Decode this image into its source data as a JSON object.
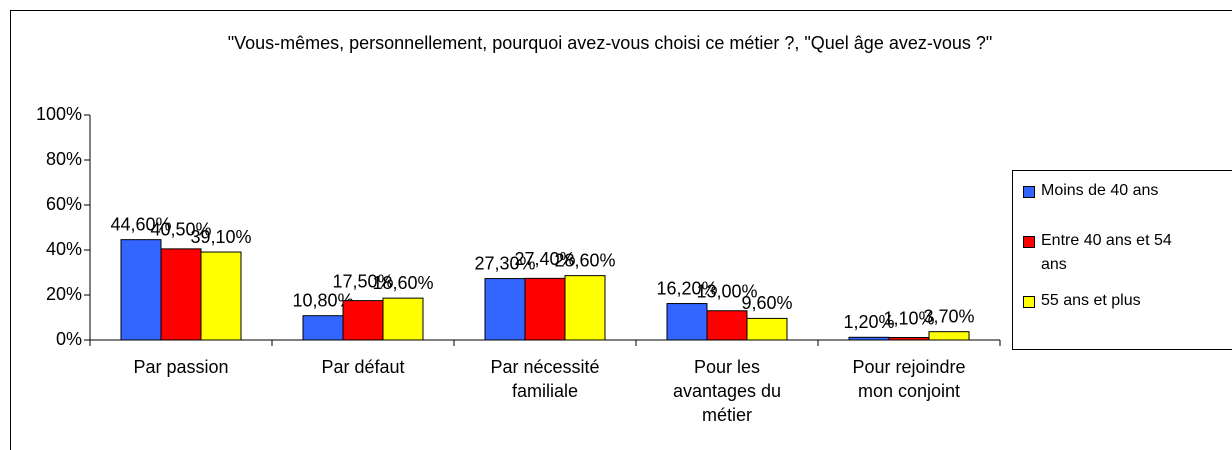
{
  "chart_data": {
    "type": "bar",
    "title": "\"Vous-mêmes, personnellement, pourquoi avez-vous choisi ce métier ?, \"Quel âge avez-vous ?\"",
    "categories": [
      "Par passion",
      "Par défaut",
      "Par nécessité familiale",
      "Pour les avantages du métier",
      "Pour rejoindre mon conjoint"
    ],
    "series": [
      {
        "name": "Moins de 40 ans",
        "color": "#3366ff",
        "values": [
          44.6,
          10.8,
          27.3,
          16.2,
          1.2
        ],
        "value_labels": [
          "44,60%",
          "10,80%",
          "27,30%",
          "16,20%",
          "1,20%"
        ]
      },
      {
        "name": "Entre 40 ans et 54 ans",
        "color": "#ff0000",
        "values": [
          40.5,
          17.5,
          27.4,
          13.0,
          1.1
        ],
        "value_labels": [
          "40,50%",
          "17,50%",
          "27,40%",
          "13,00%",
          "1,10%"
        ]
      },
      {
        "name": "55 ans et plus",
        "color": "#ffff00",
        "values": [
          39.1,
          18.6,
          28.6,
          9.6,
          3.7
        ],
        "value_labels": [
          "39,10%",
          "18,60%",
          "28,60%",
          "9,60%",
          "3,70%"
        ]
      }
    ],
    "ylim": [
      0,
      100
    ],
    "yticks": [
      {
        "value": 0,
        "label": "0%"
      },
      {
        "value": 20,
        "label": "20%"
      },
      {
        "value": 40,
        "label": "40%"
      },
      {
        "value": 60,
        "label": "60%"
      },
      {
        "value": 80,
        "label": "80%"
      },
      {
        "value": 100,
        "label": "100%"
      }
    ],
    "legend": "right"
  }
}
